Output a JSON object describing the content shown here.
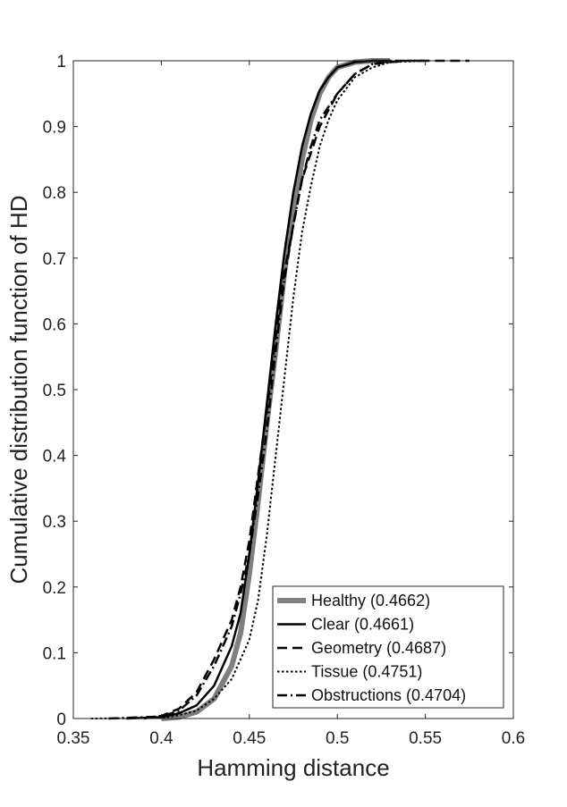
{
  "chart_data": {
    "type": "line",
    "xlabel": "Hamming distance",
    "ylabel": "Cumulative distribution function of HD",
    "xlim": [
      0.35,
      0.6
    ],
    "ylim": [
      0,
      1
    ],
    "xticks": [
      "0.35",
      "0.4",
      "0.45",
      "0.5",
      "0.55",
      "0.6"
    ],
    "yticks": [
      "0",
      "0.1",
      "0.2",
      "0.3",
      "0.4",
      "0.5",
      "0.6",
      "0.7",
      "0.8",
      "0.9",
      "1"
    ],
    "grid": false,
    "legend_position": "bottom-right",
    "series": [
      {
        "name": "Healthy (0.4662)",
        "color": "#7f7f7f",
        "style": "thick-solid",
        "x": [
          0.4,
          0.41,
          0.42,
          0.43,
          0.44,
          0.445,
          0.45,
          0.455,
          0.46,
          0.465,
          0.47,
          0.475,
          0.48,
          0.485,
          0.49,
          0.495,
          0.5,
          0.51,
          0.52,
          0.53
        ],
        "y": [
          0.0,
          0.002,
          0.01,
          0.03,
          0.08,
          0.13,
          0.22,
          0.33,
          0.45,
          0.56,
          0.68,
          0.77,
          0.85,
          0.91,
          0.95,
          0.975,
          0.99,
          0.998,
          1.0,
          1.0
        ]
      },
      {
        "name": "Clear (0.4661)",
        "color": "#000000",
        "style": "solid",
        "x": [
          0.38,
          0.4,
          0.41,
          0.42,
          0.43,
          0.44,
          0.445,
          0.45,
          0.455,
          0.46,
          0.465,
          0.47,
          0.475,
          0.48,
          0.485,
          0.49,
          0.495,
          0.5,
          0.51,
          0.52,
          0.53
        ],
        "y": [
          0.0,
          0.002,
          0.008,
          0.02,
          0.05,
          0.11,
          0.16,
          0.25,
          0.36,
          0.48,
          0.6,
          0.71,
          0.8,
          0.87,
          0.92,
          0.955,
          0.975,
          0.99,
          0.998,
          1.0,
          1.0
        ]
      },
      {
        "name": "Geometry (0.4687)",
        "color": "#000000",
        "style": "dashed",
        "x": [
          0.39,
          0.4,
          0.41,
          0.42,
          0.43,
          0.44,
          0.445,
          0.45,
          0.455,
          0.46,
          0.465,
          0.47,
          0.475,
          0.48,
          0.485,
          0.49,
          0.5,
          0.51,
          0.52,
          0.53,
          0.54,
          0.575
        ],
        "y": [
          0.0,
          0.004,
          0.015,
          0.04,
          0.09,
          0.15,
          0.2,
          0.27,
          0.37,
          0.47,
          0.58,
          0.68,
          0.75,
          0.82,
          0.86,
          0.9,
          0.95,
          0.98,
          0.995,
          0.998,
          1.0,
          1.0
        ]
      },
      {
        "name": "Tissue (0.4751)",
        "color": "#000000",
        "style": "dotted",
        "x": [
          0.36,
          0.4,
          0.41,
          0.42,
          0.43,
          0.44,
          0.45,
          0.455,
          0.46,
          0.465,
          0.47,
          0.475,
          0.48,
          0.485,
          0.49,
          0.495,
          0.5,
          0.51,
          0.52,
          0.53,
          0.55
        ],
        "y": [
          0.0,
          0.001,
          0.005,
          0.012,
          0.03,
          0.06,
          0.12,
          0.18,
          0.28,
          0.4,
          0.52,
          0.64,
          0.74,
          0.81,
          0.87,
          0.91,
          0.94,
          0.975,
          0.99,
          0.998,
          1.0
        ]
      },
      {
        "name": "Obstructions (0.4704)",
        "color": "#000000",
        "style": "dash-dot",
        "x": [
          0.37,
          0.4,
          0.41,
          0.42,
          0.43,
          0.44,
          0.445,
          0.45,
          0.455,
          0.46,
          0.465,
          0.47,
          0.475,
          0.48,
          0.485,
          0.49,
          0.5,
          0.51,
          0.52,
          0.53,
          0.55
        ],
        "y": [
          0.0,
          0.003,
          0.012,
          0.035,
          0.08,
          0.14,
          0.19,
          0.25,
          0.34,
          0.44,
          0.56,
          0.67,
          0.75,
          0.82,
          0.87,
          0.91,
          0.95,
          0.98,
          0.995,
          1.0,
          1.0
        ]
      }
    ]
  }
}
